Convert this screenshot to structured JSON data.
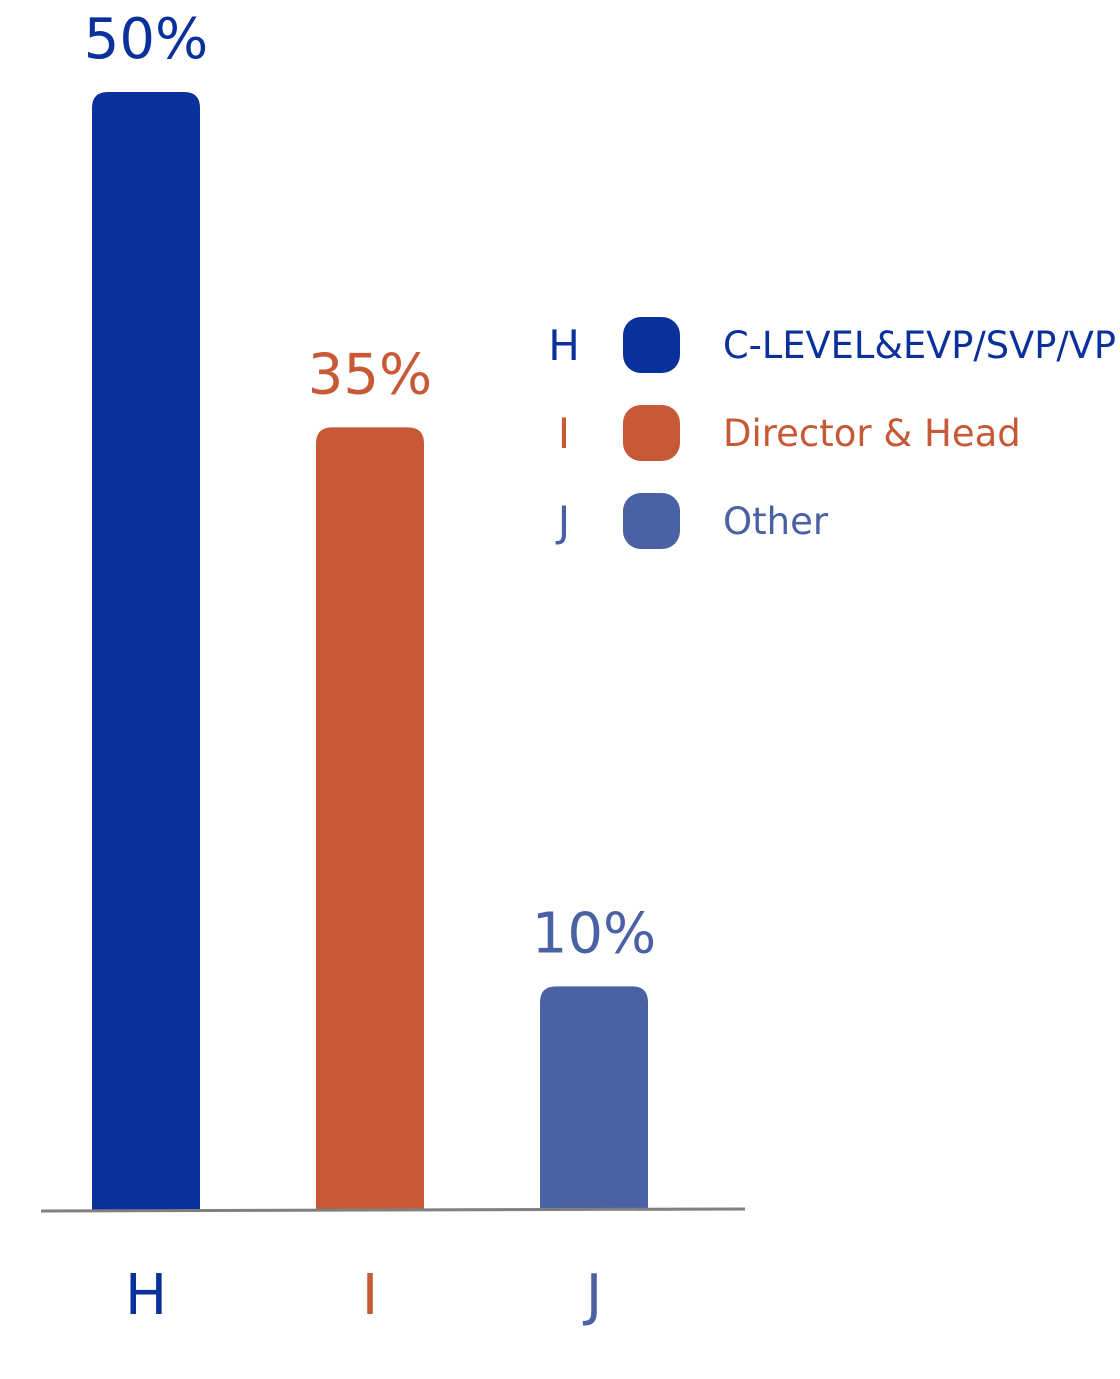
{
  "chart_data": {
    "type": "bar",
    "categories": [
      "H",
      "I",
      "J"
    ],
    "values": [
      50,
      35,
      10
    ],
    "value_labels": [
      "50%",
      "35%",
      "10%"
    ],
    "colors": [
      "#0a319b",
      "#c75937",
      "#4a61a4"
    ],
    "ylim": [
      0,
      50
    ],
    "grid": false,
    "legend": {
      "placement": "right",
      "items": [
        {
          "letter": "H",
          "label": "C-LEVEL&EVP/SVP/VP"
        },
        {
          "letter": "I",
          "label": "Director & Head"
        },
        {
          "letter": "J",
          "label": "Other"
        }
      ]
    }
  },
  "colors": {
    "axis": "#808080",
    "background": "#ffffff"
  }
}
